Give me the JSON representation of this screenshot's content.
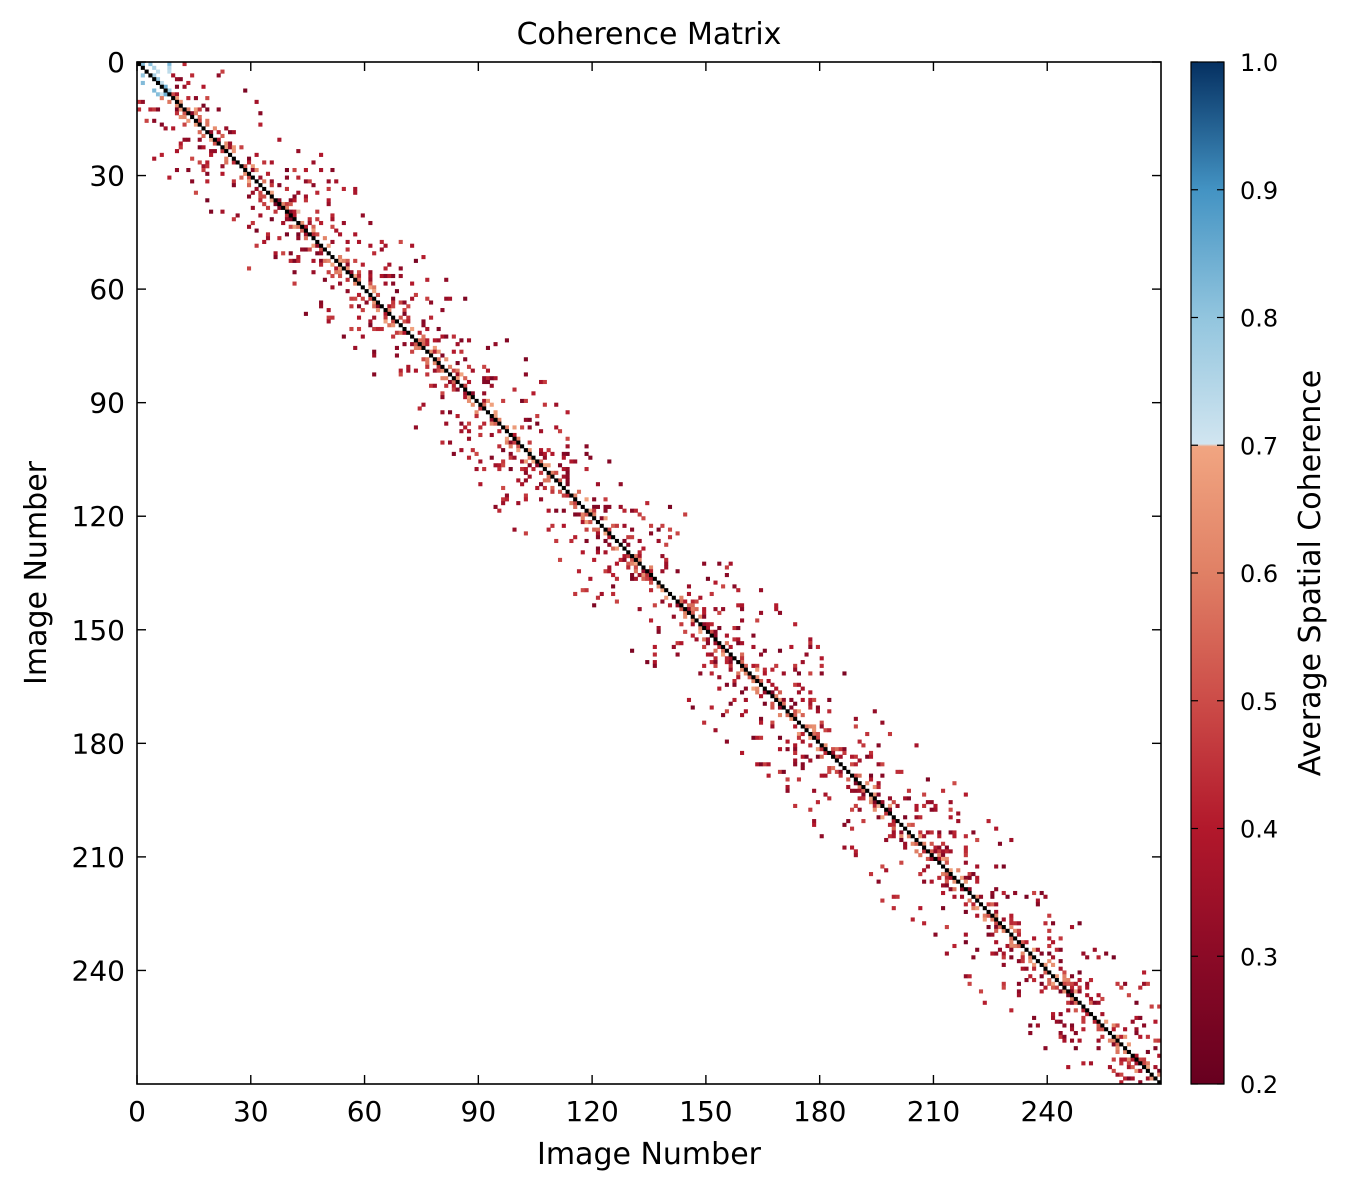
{
  "chart_data": {
    "type": "heatmap",
    "title": "Coherence Matrix",
    "xlabel": "Image Number",
    "ylabel": "Image Number",
    "n_images": 270,
    "x_ticks": [
      0,
      30,
      60,
      90,
      120,
      150,
      180,
      210,
      240
    ],
    "y_ticks": [
      0,
      30,
      60,
      90,
      120,
      150,
      180,
      210,
      240
    ],
    "xlim": [
      0,
      270
    ],
    "ylim": [
      270,
      0
    ],
    "diagonal_value": 1.0,
    "colorbar": {
      "label": "Average Spatial Coherence",
      "range": [
        0.2,
        1.0
      ],
      "ticks": [
        "0.2",
        "0.3",
        "0.4",
        "0.5",
        "0.6",
        "0.7",
        "0.8",
        "0.9",
        "1.0"
      ],
      "colormap": "RdBu",
      "stops": [
        {
          "v": 0.2,
          "color": "#67001f"
        },
        {
          "v": 0.3,
          "color": "#8b0a26"
        },
        {
          "v": 0.4,
          "color": "#b2182b"
        },
        {
          "v": 0.5,
          "color": "#cc4c48"
        },
        {
          "v": 0.6,
          "color": "#e08065"
        },
        {
          "v": 0.699,
          "color": "#f1a581"
        },
        {
          "v": 0.701,
          "color": "#d1e5f0"
        },
        {
          "v": 0.8,
          "color": "#92c5de"
        },
        {
          "v": 0.9,
          "color": "#4393c3"
        },
        {
          "v": 1.0,
          "color": "#053061"
        }
      ]
    },
    "band_halfwidth_images": 25,
    "typical_offdiagonal_range": [
      0.25,
      0.5
    ],
    "near_diagonal_range": [
      0.5,
      0.7
    ],
    "high_coherence_cluster": {
      "start": 0,
      "end": 8,
      "range": [
        0.7,
        0.85
      ]
    },
    "grid": false
  }
}
